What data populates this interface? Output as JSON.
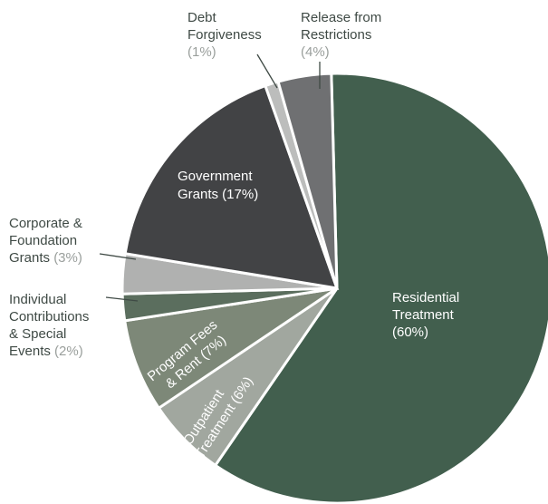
{
  "chart_data": {
    "type": "pie",
    "title": "",
    "slices": [
      {
        "label": "Residential Treatment",
        "value": 60,
        "pct_text": "(60%)",
        "color": "#425f4e"
      },
      {
        "label": "Outpatient Treatment",
        "value": 6,
        "pct_text": "(6%)",
        "color": "#a1a79f"
      },
      {
        "label": "Program Fees & Rent",
        "value": 7,
        "pct_text": "(7%)",
        "color": "#7d8878"
      },
      {
        "label": "Individual Contributions & Special Events",
        "value": 2,
        "pct_text": "(2%)",
        "color": "#5b6e5e"
      },
      {
        "label": "Corporate & Foundation Grants",
        "value": 3,
        "pct_text": "(3%)",
        "color": "#b0b1b0"
      },
      {
        "label": "Government Grants",
        "value": 17,
        "pct_text": "(17%)",
        "color": "#424345"
      },
      {
        "label": "Debt Forgiveness",
        "value": 1,
        "pct_text": "(1%)",
        "color": "#bcbdbc"
      },
      {
        "label": "Release from Restrictions",
        "value": 4,
        "pct_text": "(4%)",
        "color": "#6f7072"
      }
    ]
  },
  "labels": {
    "residential": {
      "line1": "Residential",
      "line2": "Treatment",
      "pct": "(60%)"
    },
    "outpatient": {
      "line1": "Outpatient",
      "line2": "Treatment (6%)"
    },
    "program": {
      "line1": "Program Fees",
      "line2": "& Rent (7%)"
    },
    "individual": {
      "line1": "Individual",
      "line2": "Contributions",
      "line3": "& Special",
      "line4": "Events",
      "pct": "(2%)"
    },
    "corporate": {
      "line1": "Corporate &",
      "line2": "Foundation",
      "line3": "Grants",
      "pct": "(3%)"
    },
    "government": {
      "line1": "Government",
      "line2": "Grants (17%)"
    },
    "debt": {
      "line1": "Debt",
      "line2": "Forgiveness",
      "pct": "(1%)"
    },
    "release": {
      "line1": "Release from",
      "line2": "Restrictions",
      "pct": "(4%)"
    }
  }
}
